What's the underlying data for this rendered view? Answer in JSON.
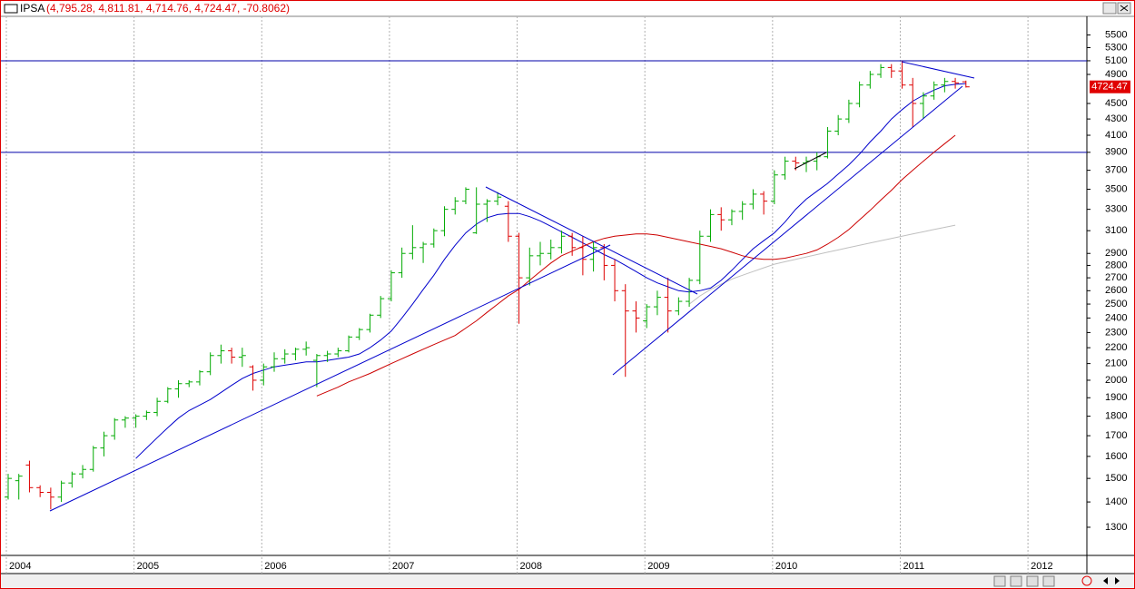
{
  "chart_data": {
    "type": "ohlc",
    "title": "IPSA",
    "subtitle": "(4,795.28, 4,811.81, 4,714.76, 4,724.47, -70.8062)",
    "last_label": "4724.47",
    "log_scale": true,
    "up_color": "#00aa00",
    "down_color": "#dd0000",
    "categories": [
      "2004",
      null,
      null,
      null,
      null,
      null,
      null,
      null,
      null,
      null,
      null,
      null,
      "2005",
      null,
      null,
      null,
      null,
      null,
      null,
      null,
      null,
      null,
      null,
      null,
      "2006",
      null,
      null,
      null,
      null,
      null,
      null,
      null,
      null,
      null,
      null,
      null,
      "2007",
      null,
      null,
      null,
      null,
      null,
      null,
      null,
      null,
      null,
      null,
      null,
      "2008",
      null,
      null,
      null,
      null,
      null,
      null,
      null,
      null,
      null,
      null,
      null,
      "2009",
      null,
      null,
      null,
      null,
      null,
      null,
      null,
      null,
      null,
      null,
      null,
      "2010",
      null,
      null,
      null,
      null,
      null,
      null,
      null,
      null,
      null,
      null,
      null,
      "2011",
      null,
      null,
      null,
      null,
      null,
      null,
      null,
      null,
      null,
      null,
      null,
      "2012",
      null,
      null,
      null,
      null,
      null
    ],
    "open": [
      1420,
      1490,
      1560,
      1460,
      1440,
      1420,
      1480,
      1520,
      1540,
      1640,
      1700,
      1780,
      1790,
      1800,
      1820,
      1880,
      1950,
      1980,
      1990,
      2050,
      2150,
      2180,
      2140,
      2080,
      2000,
      2080,
      2130,
      2160,
      2190,
      2120,
      2150,
      2160,
      2180,
      2270,
      2320,
      2420,
      2540,
      2740,
      2900,
      2950,
      2980,
      3100,
      3300,
      3380,
      3080,
      3350,
      3380,
      3330,
      3050,
      2700,
      2880,
      2900,
      2950,
      3050,
      2950,
      2850,
      2950,
      2800,
      2600,
      2450,
      2380,
      2480,
      2550,
      2450,
      2520,
      2680,
      3050,
      3250,
      3200,
      3280,
      3350,
      3450,
      3380,
      3650,
      3800,
      3780,
      3800,
      3850,
      4150,
      4300,
      4500,
      4750,
      4900,
      5000,
      4950,
      4750,
      4500,
      4600,
      4750,
      4800,
      4795.28,
      null,
      null,
      null,
      null,
      null,
      null,
      null,
      null,
      null,
      null,
      null
    ],
    "high": [
      1520,
      1520,
      1580,
      1470,
      1460,
      1490,
      1530,
      1560,
      1650,
      1720,
      1790,
      1800,
      1810,
      1830,
      1900,
      1960,
      2000,
      2000,
      2060,
      2170,
      2220,
      2200,
      2200,
      2090,
      2100,
      2170,
      2190,
      2200,
      2240,
      2160,
      2180,
      2200,
      2280,
      2330,
      2430,
      2560,
      2760,
      2950,
      3150,
      3000,
      3120,
      3330,
      3420,
      3520,
      3520,
      3400,
      3470,
      3380,
      3080,
      2950,
      3000,
      3020,
      3100,
      3080,
      3050,
      3000,
      2980,
      2850,
      2650,
      2520,
      2500,
      2600,
      2700,
      2550,
      2700,
      3100,
      3300,
      3320,
      3300,
      3380,
      3500,
      3480,
      3700,
      3850,
      3850,
      3850,
      3900,
      4200,
      4350,
      4550,
      4800,
      4950,
      5050,
      5050,
      5100,
      4850,
      4650,
      4800,
      4850,
      4850,
      4811.81,
      null,
      null,
      null,
      null,
      null,
      null,
      null,
      null,
      null,
      null,
      null
    ],
    "low": [
      1410,
      1410,
      1440,
      1420,
      1370,
      1400,
      1460,
      1500,
      1530,
      1600,
      1680,
      1740,
      1740,
      1780,
      1800,
      1870,
      1900,
      1960,
      1970,
      2030,
      2100,
      2100,
      2080,
      1940,
      1970,
      2050,
      2100,
      2120,
      2150,
      1960,
      2110,
      2140,
      2170,
      2250,
      2300,
      2400,
      2520,
      2700,
      2850,
      2820,
      2950,
      3050,
      3250,
      3350,
      3070,
      3180,
      3340,
      3000,
      2360,
      2640,
      2800,
      2850,
      2900,
      2880,
      2720,
      2750,
      2680,
      2520,
      2020,
      2300,
      2330,
      2420,
      2300,
      2420,
      2480,
      2650,
      3000,
      3100,
      3150,
      3200,
      3300,
      3250,
      3350,
      3600,
      3700,
      3680,
      3700,
      3830,
      4100,
      4250,
      4450,
      4700,
      4850,
      4850,
      4700,
      4200,
      4300,
      4550,
      4650,
      4700,
      4714.76,
      null,
      null,
      null,
      null,
      null,
      null,
      null,
      null,
      null,
      null,
      null
    ],
    "close": [
      1500,
      1510,
      1460,
      1440,
      1420,
      1480,
      1520,
      1540,
      1640,
      1700,
      1780,
      1790,
      1800,
      1820,
      1880,
      1950,
      1980,
      1990,
      2050,
      2150,
      2180,
      2140,
      2150,
      2000,
      2080,
      2130,
      2160,
      2190,
      2200,
      2150,
      2160,
      2180,
      2270,
      2320,
      2420,
      2540,
      2740,
      2900,
      2950,
      2980,
      3100,
      3300,
      3380,
      3500,
      3350,
      3380,
      3420,
      3050,
      2700,
      2880,
      2900,
      2950,
      3050,
      2950,
      2850,
      2950,
      2800,
      2600,
      2450,
      2400,
      2480,
      2550,
      2450,
      2520,
      2680,
      3050,
      3250,
      3200,
      3280,
      3350,
      3450,
      3380,
      3650,
      3800,
      3780,
      3800,
      3850,
      4150,
      4300,
      4500,
      4750,
      4900,
      5000,
      4950,
      4750,
      4500,
      4600,
      4750,
      4800,
      4780,
      4724.47,
      null,
      null,
      null,
      null,
      null,
      null,
      null,
      null,
      null,
      null,
      null
    ],
    "overlays": [
      {
        "color": "#0000cc",
        "values": [
          null,
          null,
          null,
          null,
          null,
          null,
          null,
          null,
          null,
          null,
          null,
          null,
          1590,
          1640,
          1690,
          1740,
          1790,
          1830,
          1860,
          1890,
          1930,
          1970,
          2010,
          2040,
          2060,
          2080,
          2090,
          2100,
          2110,
          2110,
          2120,
          2130,
          2140,
          2160,
          2200,
          2250,
          2310,
          2400,
          2500,
          2610,
          2720,
          2850,
          2970,
          3080,
          3160,
          3220,
          3250,
          3260,
          3260,
          3230,
          3190,
          3140,
          3090,
          3040,
          2990,
          2940,
          2890,
          2850,
          2800,
          2750,
          2700,
          2660,
          2630,
          2600,
          2590,
          2600,
          2620,
          2680,
          2760,
          2850,
          2940,
          3010,
          3080,
          3180,
          3300,
          3400,
          3480,
          3560,
          3660,
          3760,
          3880,
          4020,
          4150,
          4300,
          4420,
          4530,
          4610,
          4680,
          4740,
          4760,
          4770,
          null,
          null,
          null,
          null,
          null,
          null,
          null,
          null,
          null,
          null,
          null
        ]
      },
      {
        "color": "#cc0000",
        "values": [
          null,
          null,
          null,
          null,
          null,
          null,
          null,
          null,
          null,
          null,
          null,
          null,
          null,
          null,
          null,
          null,
          null,
          null,
          null,
          null,
          null,
          null,
          null,
          null,
          null,
          null,
          null,
          null,
          null,
          1910,
          1935,
          1960,
          1990,
          2015,
          2040,
          2070,
          2100,
          2130,
          2160,
          2190,
          2220,
          2250,
          2280,
          2330,
          2380,
          2440,
          2500,
          2560,
          2610,
          2680,
          2750,
          2820,
          2880,
          2920,
          2960,
          3000,
          3030,
          3050,
          3060,
          3070,
          3070,
          3060,
          3040,
          3020,
          3000,
          2980,
          2960,
          2940,
          2910,
          2880,
          2860,
          2850,
          2850,
          2860,
          2880,
          2900,
          2930,
          2980,
          3040,
          3110,
          3200,
          3290,
          3390,
          3490,
          3600,
          3700,
          3800,
          3900,
          4000,
          4100,
          null,
          null,
          null,
          null,
          null,
          null,
          null,
          null,
          null,
          null,
          null,
          null
        ]
      },
      {
        "color": "#c0c0c0",
        "values": [
          null,
          null,
          null,
          null,
          null,
          null,
          null,
          null,
          null,
          null,
          null,
          null,
          null,
          null,
          null,
          null,
          null,
          null,
          null,
          null,
          null,
          null,
          null,
          null,
          null,
          null,
          null,
          null,
          null,
          null,
          null,
          null,
          null,
          null,
          null,
          null,
          null,
          null,
          null,
          null,
          null,
          null,
          null,
          null,
          null,
          null,
          null,
          null,
          null,
          null,
          null,
          null,
          null,
          null,
          null,
          null,
          null,
          null,
          null,
          null,
          null,
          null,
          null,
          null,
          2500,
          2560,
          2610,
          2650,
          2690,
          2720,
          2750,
          2780,
          2810,
          2830,
          2850,
          2870,
          2890,
          2910,
          2930,
          2950,
          2970,
          2990,
          3010,
          3030,
          3050,
          3070,
          3090,
          3110,
          3130,
          3150,
          null,
          null,
          null,
          null,
          null,
          null,
          null,
          null,
          null,
          null,
          null,
          null
        ]
      }
    ],
    "horizontal_lines": [
      5100,
      3900
    ],
    "horizontal_line_color": "#0000aa",
    "ylim": [
      1197,
      5809
    ],
    "yticks": [
      1300,
      1400,
      1500,
      1600,
      1700,
      1800,
      1900,
      2000,
      2100,
      2200,
      2300,
      2400,
      2500,
      2600,
      2700,
      2800,
      2900,
      3100,
      3300,
      3500,
      3700,
      3900,
      4100,
      4300,
      4500,
      4900,
      5100,
      5300,
      5500
    ]
  }
}
